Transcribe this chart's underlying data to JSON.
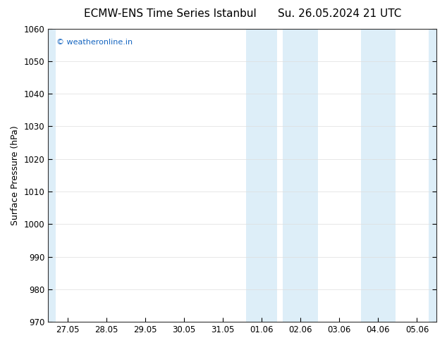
{
  "title_left": "ECMW-ENS Time Series Istanbul",
  "title_right": "Su. 26.05.2024 21 UTC",
  "ylabel": "Surface Pressure (hPa)",
  "ylim": [
    970,
    1060
  ],
  "yticks": [
    970,
    980,
    990,
    1000,
    1010,
    1020,
    1030,
    1040,
    1050,
    1060
  ],
  "xtick_labels": [
    "27.05",
    "28.05",
    "29.05",
    "30.05",
    "31.05",
    "01.06",
    "02.06",
    "03.06",
    "04.06",
    "05.06"
  ],
  "xtick_positions": [
    0,
    1,
    2,
    3,
    4,
    5,
    6,
    7,
    8,
    9
  ],
  "shade_color": "#ddeef8",
  "shade_bands": [
    {
      "x_start": -0.5,
      "x_end": -0.35
    },
    {
      "x_start": 4.6,
      "x_end": 5.4
    },
    {
      "x_start": 5.5,
      "x_end": 6.4
    },
    {
      "x_start": 7.6,
      "x_end": 8.5
    },
    {
      "x_start": 9.35,
      "x_end": 9.5
    }
  ],
  "watermark": "© weatheronline.in",
  "watermark_color": "#1565c0",
  "bg_color": "#ffffff",
  "plot_bg_color": "#ffffff",
  "title_fontsize": 11,
  "label_fontsize": 9,
  "tick_fontsize": 8.5,
  "grid_color": "#dddddd",
  "spine_color": "#333333",
  "xlim_min": -0.5,
  "xlim_max": 9.5
}
